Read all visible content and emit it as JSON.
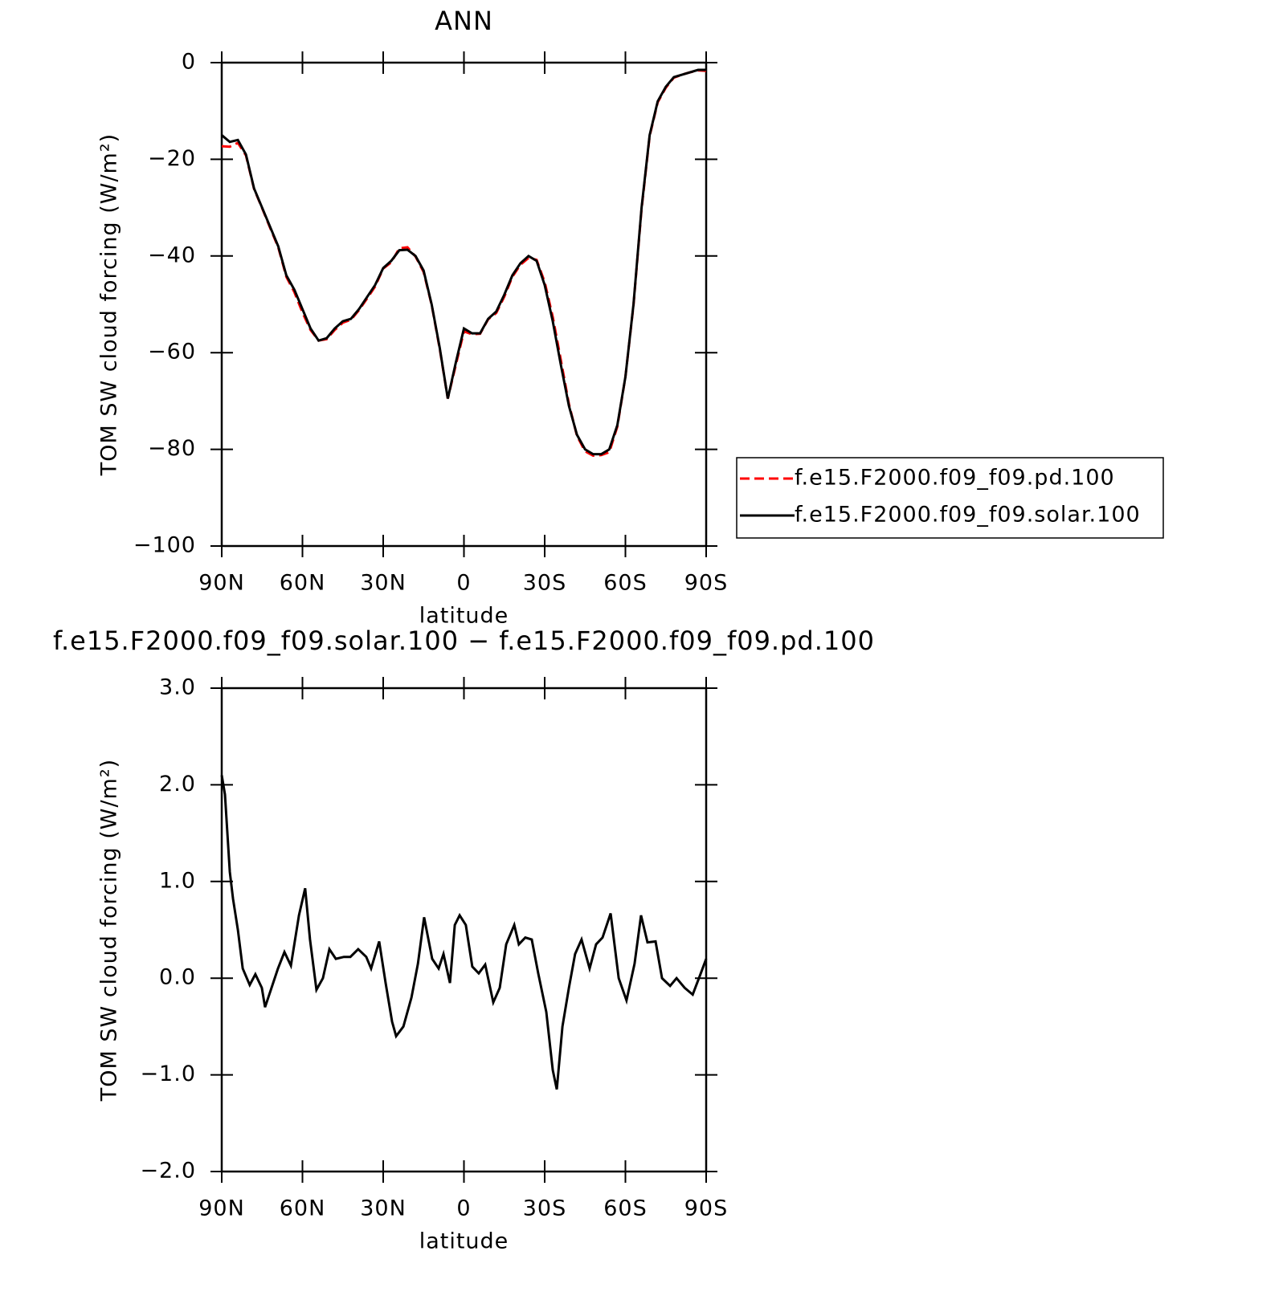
{
  "chart_data": [
    {
      "type": "line",
      "title": "ANN",
      "xlabel": "latitude",
      "ylabel": "TOM SW cloud forcing (W/m²)",
      "x": [
        90,
        87,
        84,
        81,
        78,
        75,
        72,
        69,
        66,
        63,
        60,
        57,
        54,
        51,
        48,
        45,
        42,
        39,
        36,
        33,
        30,
        27,
        24,
        21,
        18,
        15,
        12,
        9,
        6,
        3,
        0,
        -3,
        -6,
        -9,
        -12,
        -15,
        -18,
        -21,
        -24,
        -27,
        -30,
        -33,
        -36,
        -39,
        -42,
        -45,
        -48,
        -51,
        -54,
        -57,
        -60,
        -63,
        -66,
        -69,
        -72,
        -75,
        -78,
        -81,
        -84,
        -87,
        -90
      ],
      "series": [
        {
          "name": "f.e15.F2000.f09_f09.pd.100",
          "color": "#ff0000",
          "style": "dashed",
          "values": [
            -17.3,
            -17.4,
            -16.6,
            -19.2,
            -26.1,
            -30.1,
            -34.2,
            -38.2,
            -44.3,
            -47.5,
            -51.7,
            -55.3,
            -57.5,
            -57.2,
            -55.3,
            -53.8,
            -53.2,
            -51.2,
            -48.8,
            -46.3,
            -42.6,
            -41.3,
            -38.4,
            -38.2,
            -40.1,
            -43.3,
            -50.1,
            -59.2,
            -69.5,
            -62.5,
            -55.6,
            -56.2,
            -56.1,
            -53.1,
            -51.8,
            -48.4,
            -44.3,
            -41.8,
            -40.4,
            -40.8,
            -45.4,
            -52.6,
            -61.5,
            -70.6,
            -77.2,
            -80.4,
            -81.3,
            -81.2,
            -80.6,
            -75.3,
            -65.0,
            -50.2,
            -30.3,
            -15.2,
            -8.2,
            -5.2,
            -3.1,
            -2.5,
            -2.0,
            -1.6,
            -1.7
          ]
        },
        {
          "name": "f.e15.F2000.f09_f09.solar.100",
          "color": "#000000",
          "style": "solid",
          "values": [
            -15.0,
            -16.4,
            -16.0,
            -19.0,
            -26.0,
            -30.0,
            -34.0,
            -38.0,
            -44.0,
            -47.0,
            -51.0,
            -55.0,
            -57.5,
            -57.0,
            -55.0,
            -53.5,
            -53.0,
            -51.0,
            -48.5,
            -46.0,
            -42.5,
            -41.0,
            -38.8,
            -38.7,
            -40.0,
            -43.0,
            -50.0,
            -59.0,
            -69.5,
            -62.0,
            -55.0,
            -56.0,
            -56.0,
            -53.0,
            -51.5,
            -48.0,
            -44.0,
            -41.5,
            -40.0,
            -41.0,
            -46.0,
            -53.5,
            -62.5,
            -71.0,
            -77.0,
            -80.0,
            -81.0,
            -81.0,
            -80.0,
            -75.0,
            -65.0,
            -50.0,
            -30.0,
            -15.0,
            -8.0,
            -5.0,
            -3.0,
            -2.5,
            -2.0,
            -1.5,
            -1.5
          ]
        }
      ],
      "xlim": [
        90,
        -90
      ],
      "xticks": [
        {
          "value": 90,
          "label": "90N"
        },
        {
          "value": 60,
          "label": "60N"
        },
        {
          "value": 30,
          "label": "30N"
        },
        0,
        {
          "value": -30,
          "label": "30S"
        },
        {
          "value": -60,
          "label": "60S"
        },
        {
          "value": -90,
          "label": "90S"
        }
      ],
      "ylim": [
        -100,
        0
      ],
      "yticks": [
        0,
        {
          "value": -20,
          "label": "−20"
        },
        {
          "value": -40,
          "label": "−40"
        },
        {
          "value": -60,
          "label": "−60"
        },
        {
          "value": -80,
          "label": "−80"
        },
        {
          "value": -100,
          "label": "−100"
        }
      ],
      "legend": "right"
    },
    {
      "type": "line",
      "title": "f.e15.F2000.f09_f09.solar.100 − f.e15.F2000.f09_f09.pd.100",
      "xlabel": "latitude",
      "ylabel": "TOM SW cloud forcing (W/m²)",
      "x": [
        90,
        88.8,
        87.0,
        85.8,
        84.0,
        82.2,
        79.6,
        77.5,
        75.1,
        73.9,
        71.5,
        69.1,
        66.7,
        64.3,
        61.3,
        59.0,
        57.2,
        54.8,
        52.4,
        50.0,
        47.6,
        44.6,
        42.2,
        39.3,
        36.3,
        34.5,
        31.5,
        29.1,
        26.7,
        25.2,
        22.5,
        19.5,
        17.1,
        14.8,
        11.8,
        9.4,
        7.6,
        5.2,
        3.4,
        1.6,
        -0.7,
        -3.1,
        -5.5,
        -7.9,
        -10.9,
        -13.3,
        -15.7,
        -18.7,
        -20.4,
        -22.8,
        -25.2,
        -27.6,
        -30.6,
        -33.0,
        -34.5,
        -36.6,
        -39.0,
        -41.3,
        -43.7,
        -46.7,
        -49.1,
        -51.5,
        -54.5,
        -57.5,
        -60.4,
        -63.4,
        -65.8,
        -68.2,
        -71.2,
        -73.6,
        -76.6,
        -79.0,
        -82.0,
        -85.0,
        -88.0,
        -90
      ],
      "values": [
        2.1,
        1.9,
        1.1,
        0.82,
        0.5,
        0.1,
        -0.07,
        0.04,
        -0.1,
        -0.3,
        -0.1,
        0.1,
        0.27,
        0.13,
        0.65,
        0.93,
        0.4,
        -0.12,
        0.0,
        0.3,
        0.2,
        0.22,
        0.22,
        0.3,
        0.22,
        0.1,
        0.38,
        -0.05,
        -0.45,
        -0.6,
        -0.5,
        -0.2,
        0.15,
        0.63,
        0.2,
        0.1,
        0.25,
        -0.05,
        0.55,
        0.65,
        0.55,
        0.12,
        0.05,
        0.14,
        -0.25,
        -0.1,
        0.35,
        0.55,
        0.35,
        0.42,
        0.4,
        0.05,
        -0.35,
        -0.95,
        -1.15,
        -0.5,
        -0.1,
        0.25,
        0.4,
        0.1,
        0.35,
        0.42,
        0.67,
        0.0,
        -0.23,
        0.15,
        0.65,
        0.37,
        0.38,
        0.0,
        -0.08,
        0.0,
        -0.1,
        -0.17,
        0.05,
        0.2
      ],
      "color": "#000000",
      "xlim": [
        90,
        -90
      ],
      "xticks": [
        {
          "value": 90,
          "label": "90N"
        },
        {
          "value": 60,
          "label": "60N"
        },
        {
          "value": 30,
          "label": "30N"
        },
        0,
        {
          "value": -30,
          "label": "30S"
        },
        {
          "value": -60,
          "label": "60S"
        },
        {
          "value": -90,
          "label": "90S"
        }
      ],
      "ylim": [
        -2,
        3
      ],
      "yticks": [
        {
          "value": 3,
          "label": "3.0"
        },
        {
          "value": 2,
          "label": "2.0"
        },
        {
          "value": 1,
          "label": "1.0"
        },
        {
          "value": 0,
          "label": "0.0"
        },
        {
          "value": -1,
          "label": "−1.0"
        },
        {
          "value": -2,
          "label": "−2.0"
        }
      ]
    }
  ]
}
